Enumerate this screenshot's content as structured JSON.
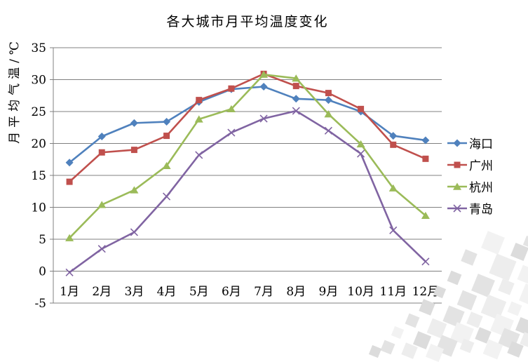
{
  "title": "各大城市月平均温度变化",
  "colors": {
    "background": "#FFFFFF",
    "gridline": "#808080",
    "text": "#000000",
    "haikou": "#4F81BD",
    "guangzhou": "#C0504D",
    "hangzhou": "#9BBB59",
    "qingdao": "#8064A2"
  },
  "chart_data": {
    "type": "line",
    "title": "各大城市月平均温度变化",
    "xlabel": "",
    "ylabel": "月平均气温/℃",
    "ylim": [
      -5,
      35
    ],
    "ytick_step": 5,
    "yticks": [
      35,
      30,
      25,
      20,
      15,
      10,
      5,
      0,
      -5
    ],
    "grid": true,
    "legend_position": "right",
    "gridline_color": "#808080",
    "categories": [
      "1月",
      "2月",
      "3月",
      "4月",
      "5月",
      "6月",
      "7月",
      "8月",
      "9月",
      "10月",
      "11月",
      "12月"
    ],
    "series": [
      {
        "name": "海口",
        "color": "#4F81BD",
        "marker": "diamond",
        "values": [
          17.0,
          21.1,
          23.2,
          23.4,
          26.5,
          28.5,
          28.9,
          27.0,
          26.8,
          25.0,
          21.2,
          20.5
        ]
      },
      {
        "name": "广州",
        "color": "#C0504D",
        "marker": "square",
        "values": [
          14.0,
          18.6,
          19.0,
          21.2,
          26.8,
          28.6,
          30.9,
          29.0,
          27.9,
          25.4,
          19.8,
          17.6
        ]
      },
      {
        "name": "杭州",
        "color": "#9BBB59",
        "marker": "triangle",
        "values": [
          5.2,
          10.4,
          12.7,
          16.5,
          23.8,
          25.4,
          30.8,
          30.2,
          24.6,
          19.9,
          13.0,
          8.7
        ]
      },
      {
        "name": "青岛",
        "color": "#8064A2",
        "marker": "x",
        "values": [
          -0.2,
          3.5,
          6.1,
          11.7,
          18.2,
          21.7,
          23.9,
          25.1,
          22.0,
          18.4,
          6.4,
          1.5
        ]
      }
    ]
  }
}
